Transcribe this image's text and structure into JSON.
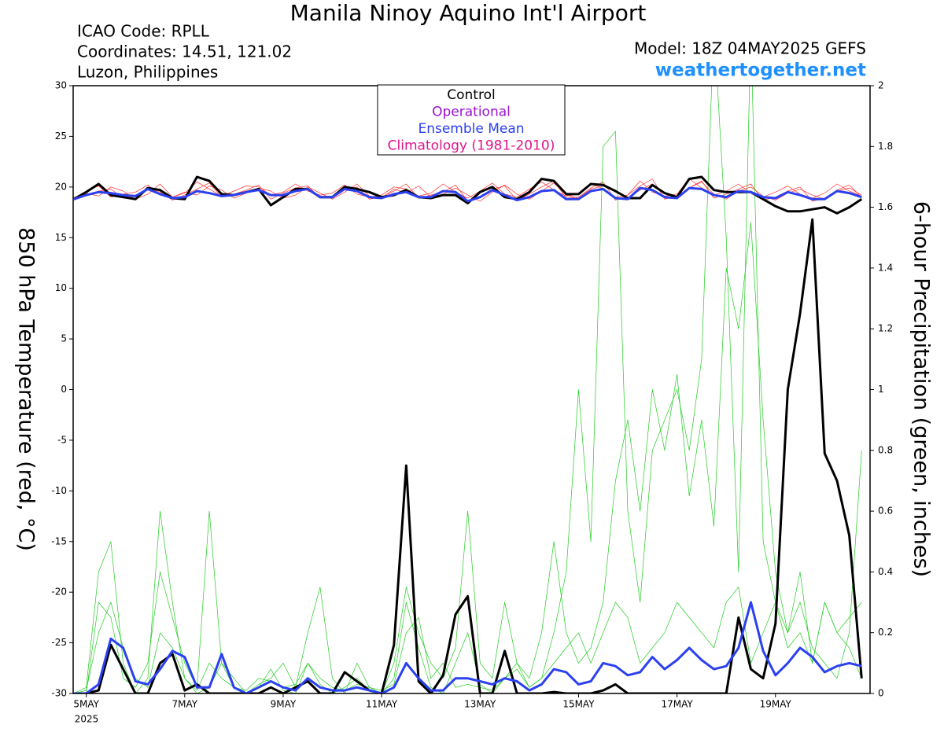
{
  "chart_data": {
    "type": "line",
    "title": "Manila Ninoy Aquino Int'l Airport",
    "info": [
      "ICAO Code: RPLL",
      "Coordinates: 14.51, 121.02",
      "Luzon, Philippines"
    ],
    "model": "Model: 18Z 04MAY2025 GEFS",
    "website": "weathertogether.net",
    "y_label": "850 hPa Temperature (red, °C)",
    "y2_label": "6-hour Precipitation (green, inches)",
    "year_label": "2025",
    "categories": [
      null,
      "5MAY",
      null,
      null,
      null,
      null,
      null,
      null,
      null,
      "7MAY",
      null,
      null,
      null,
      null,
      null,
      null,
      null,
      "9MAY",
      null,
      null,
      null,
      null,
      null,
      null,
      null,
      "11MAY",
      null,
      null,
      null,
      null,
      null,
      null,
      null,
      "13MAY",
      null,
      null,
      null,
      null,
      null,
      null,
      null,
      "15MAY",
      null,
      null,
      null,
      null,
      null,
      null,
      null,
      "17MAY",
      null,
      null,
      null,
      null,
      null,
      null,
      null,
      "19MAY",
      null,
      null,
      null,
      null,
      null,
      null,
      null
    ],
    "ylim": [
      -30,
      30
    ],
    "yticks": [
      -30,
      -25,
      -20,
      -15,
      -10,
      -5,
      0,
      5,
      10,
      15,
      20,
      25,
      30
    ],
    "y2lim": [
      0,
      2
    ],
    "y2ticks": [
      0,
      0.2,
      0.4,
      0.6,
      0.8,
      1,
      1.2,
      1.4,
      1.6,
      1.8,
      2
    ],
    "legend": [
      {
        "name": "Control",
        "color": "#000000"
      },
      {
        "name": "Operational",
        "color": "#9a10d0"
      },
      {
        "name": "Ensemble Mean",
        "color": "#2b40f0"
      },
      {
        "name": "Climatology (1981-2010)",
        "color": "#e0148c"
      }
    ],
    "series": [
      {
        "color": "#ff3030",
        "width": 0.7,
        "values": [
          18.9,
          19.6,
          20.1,
          19.0,
          19.3,
          19.5,
          20.2,
          19.2,
          19.0,
          19.4,
          20.5,
          19.8,
          19.1,
          19.6,
          20.1,
          20.0,
          19.2,
          19.5,
          20.3,
          19.6,
          19.2,
          19.4,
          20.2,
          19.3,
          19.0,
          19.2,
          20.0,
          19.8,
          19.1,
          19.4,
          20.3,
          19.5,
          18.9,
          19.6,
          20.4,
          19.3,
          19.0,
          19.8,
          20.5,
          19.7,
          19.1,
          19.3,
          20.4,
          19.8,
          19.0,
          19.2,
          20.6,
          19.5,
          19.1,
          19.3,
          20.8,
          19.9,
          19.2,
          19.6,
          20.3,
          19.4,
          19.0,
          19.5,
          20.1,
          19.3,
          18.9,
          19.4,
          20.3,
          19.6,
          19.1
        ]
      },
      {
        "color": "#ff3030",
        "width": 0.7,
        "values": [
          19.0,
          19.2,
          19.6,
          19.8,
          18.9,
          19.1,
          19.9,
          19.5,
          18.7,
          19.2,
          19.8,
          20.4,
          19.0,
          19.3,
          19.7,
          20.2,
          18.8,
          19.4,
          19.9,
          20.1,
          18.9,
          19.1,
          19.7,
          20.0,
          18.8,
          19.0,
          19.6,
          20.3,
          18.9,
          19.2,
          19.5,
          20.2,
          18.6,
          19.1,
          19.8,
          20.1,
          18.7,
          19.3,
          20.0,
          20.6,
          18.9,
          19.0,
          19.9,
          20.5,
          18.7,
          19.2,
          20.1,
          20.8,
          18.8,
          19.1,
          19.9,
          20.6,
          18.9,
          19.3,
          19.8,
          20.3,
          18.7,
          19.0,
          19.6,
          20.0,
          18.6,
          18.9,
          19.7,
          20.2,
          19.0
        ]
      },
      {
        "color": "#ff3030",
        "width": 0.7,
        "values": [
          18.7,
          19.4,
          19.1,
          20.0,
          19.6,
          18.8,
          19.3,
          20.3,
          19.0,
          19.5,
          19.2,
          20.1,
          19.7,
          18.9,
          19.4,
          19.9,
          19.6,
          18.9,
          19.2,
          20.0,
          19.4,
          18.8,
          19.5,
          20.3,
          19.1,
          18.9,
          19.8,
          19.4,
          20.1,
          19.0,
          19.3,
          19.9,
          19.2,
          18.6,
          19.5,
          20.2,
          19.3,
          18.8,
          19.6,
          20.4,
          19.2,
          18.9,
          19.8,
          20.1,
          19.5,
          18.9,
          19.7,
          20.3,
          19.4,
          19.0,
          19.9,
          20.5,
          19.3,
          18.8,
          19.6,
          20.0,
          19.1,
          18.7,
          19.4,
          19.8,
          19.2,
          18.8,
          19.6,
          19.9,
          19.2
        ]
      },
      {
        "color": "#22cc22",
        "width": 0.7,
        "axis": "y2",
        "values": [
          0,
          0.02,
          0.4,
          0.5,
          0.1,
          0,
          0.05,
          0.6,
          0.3,
          0.05,
          0,
          0.02,
          0.1,
          0.05,
          0,
          0.02,
          0.08,
          0.01,
          0,
          0.1,
          0.03,
          0,
          0.02,
          0.05,
          0.01,
          0,
          0.05,
          0.3,
          0.15,
          0.02,
          0,
          0.1,
          0.2,
          0.03,
          0,
          0.05,
          0.1,
          0.02,
          0.05,
          0.2,
          0.4,
          1.0,
          0.5,
          1.8,
          1.85,
          0.6,
          0.3,
          0.8,
          0.9,
          1.0,
          0.8,
          1.1,
          2.2,
          1.5,
          0.4,
          2.2,
          0.5,
          0.3,
          0.2,
          0.4,
          0.1,
          0.3,
          0.2,
          0.15,
          0.05
        ]
      },
      {
        "color": "#22cc22",
        "width": 0.7,
        "axis": "y2",
        "values": [
          0,
          0,
          0.3,
          0.25,
          0.05,
          0.02,
          0.1,
          0.4,
          0.25,
          0.1,
          0.02,
          0.6,
          0.1,
          0.02,
          0,
          0.03,
          0.05,
          0.1,
          0.02,
          0.2,
          0.35,
          0.05,
          0,
          0.1,
          0.02,
          0,
          0.1,
          0.35,
          0.2,
          0.1,
          0.05,
          0.15,
          0.6,
          0.1,
          0.05,
          0.3,
          0.1,
          0.05,
          0.2,
          0.5,
          0.2,
          0.1,
          0.15,
          0.3,
          0.7,
          0.9,
          0.6,
          1.0,
          0.8,
          1.05,
          0.65,
          0.9,
          0.55,
          1.4,
          1.2,
          1.55,
          0.9,
          0.4,
          0.2,
          0.3,
          0.15,
          0.1,
          0.05,
          0.2,
          0.8
        ]
      },
      {
        "color": "#22cc22",
        "width": 0.7,
        "axis": "y2",
        "values": [
          0,
          0.01,
          0.2,
          0.3,
          0.15,
          0.05,
          0.02,
          0.2,
          0.15,
          0.05,
          0.01,
          0.1,
          0.05,
          0.02,
          0.01,
          0.05,
          0.04,
          0.02,
          0.03,
          0.1,
          0.05,
          0.02,
          0.01,
          0.03,
          0.02,
          0.01,
          0.03,
          0.2,
          0.25,
          0.05,
          0.1,
          0.02,
          0.03,
          0.02,
          0.01,
          0.05,
          0.08,
          0.02,
          0.05,
          0.1,
          0.15,
          0.2,
          0.1,
          0.2,
          0.3,
          0.25,
          0.1,
          0.15,
          0.2,
          0.3,
          0.25,
          0.2,
          0.15,
          0.3,
          0.35,
          0.1,
          0.2,
          0.3,
          0.15,
          0.2,
          0.1,
          0.3,
          0.2,
          0.25,
          0.3
        ]
      },
      {
        "color": "#000000",
        "width": 3,
        "values": [
          18.8,
          19.5,
          20.3,
          19.2,
          19,
          18.8,
          19.9,
          19.7,
          18.9,
          18.8,
          21,
          20.6,
          19.3,
          19.2,
          19.5,
          19.8,
          18.2,
          19,
          19.8,
          19.8,
          19,
          19,
          20,
          19.8,
          19.5,
          19,
          19.2,
          19.7,
          19,
          18.9,
          19.2,
          19.2,
          18.4,
          19.5,
          20,
          19,
          18.8,
          19.5,
          20.8,
          20.6,
          19.3,
          19.3,
          20.3,
          20.2,
          19.6,
          18.9,
          18.9,
          20.2,
          19.4,
          19,
          20.8,
          21,
          19.7,
          19.5,
          19.5,
          19.5,
          18.8,
          18.1,
          17.6,
          17.6,
          17.8,
          18,
          17.4,
          18,
          18.8
        ]
      },
      {
        "color": "#2b40f0",
        "width": 3,
        "values": [
          18.8,
          19.2,
          19.5,
          19.4,
          19.2,
          19.1,
          19.8,
          19.3,
          18.9,
          19,
          19.6,
          19.4,
          19.1,
          19.2,
          19.5,
          19.7,
          19.2,
          19.2,
          19.6,
          19.8,
          19,
          19,
          19.8,
          19.6,
          19,
          18.9,
          19.3,
          19.5,
          19,
          19,
          19.6,
          19.5,
          18.6,
          19,
          19.7,
          19.2,
          18.7,
          19,
          19.6,
          19.7,
          18.8,
          18.8,
          19.6,
          19.8,
          18.9,
          18.8,
          19.9,
          19.7,
          19,
          18.9,
          19.9,
          19.8,
          19.2,
          19,
          19.6,
          19.5,
          19,
          18.9,
          19.5,
          19.2,
          18.8,
          18.8,
          19.6,
          19.4,
          19
        ]
      },
      {
        "color": "#000000",
        "width": 3,
        "axis": "y2",
        "values": [
          0,
          0,
          0.01,
          0.16,
          0.08,
          0,
          0,
          0.1,
          0.13,
          0.01,
          0.03,
          0,
          0,
          0,
          0,
          0,
          0.02,
          0,
          0.02,
          0.04,
          0,
          0,
          0.07,
          0.04,
          0.01,
          0,
          0.16,
          0.75,
          0.04,
          0,
          0.06,
          0.26,
          0.32,
          0,
          0,
          0.14,
          0,
          0,
          0,
          0.005,
          0,
          0,
          0,
          0.01,
          0.03,
          0,
          0,
          0,
          0,
          0,
          0,
          0,
          0,
          0,
          0.25,
          0.08,
          0.05,
          0.23,
          1.0,
          1.25,
          1.56,
          0.79,
          0.7,
          0.52,
          0.05
        ]
      },
      {
        "color": "#2b40f0",
        "width": 3,
        "axis": "y2",
        "values": [
          0,
          0,
          0.03,
          0.18,
          0.15,
          0.04,
          0.03,
          0.08,
          0.14,
          0.12,
          0.02,
          0.02,
          0.13,
          0.02,
          0,
          0.02,
          0.04,
          0.02,
          0.01,
          0.05,
          0.02,
          0.01,
          0.01,
          0.02,
          0.01,
          0,
          0.02,
          0.1,
          0.05,
          0.01,
          0.01,
          0.05,
          0.05,
          0.04,
          0.03,
          0.05,
          0.04,
          0.01,
          0.03,
          0.08,
          0.07,
          0.03,
          0.04,
          0.1,
          0.09,
          0.06,
          0.07,
          0.12,
          0.08,
          0.11,
          0.15,
          0.11,
          0.08,
          0.09,
          0.15,
          0.3,
          0.14,
          0.06,
          0.1,
          0.15,
          0.12,
          0.07,
          0.09,
          0.1,
          0.09
        ]
      }
    ]
  }
}
